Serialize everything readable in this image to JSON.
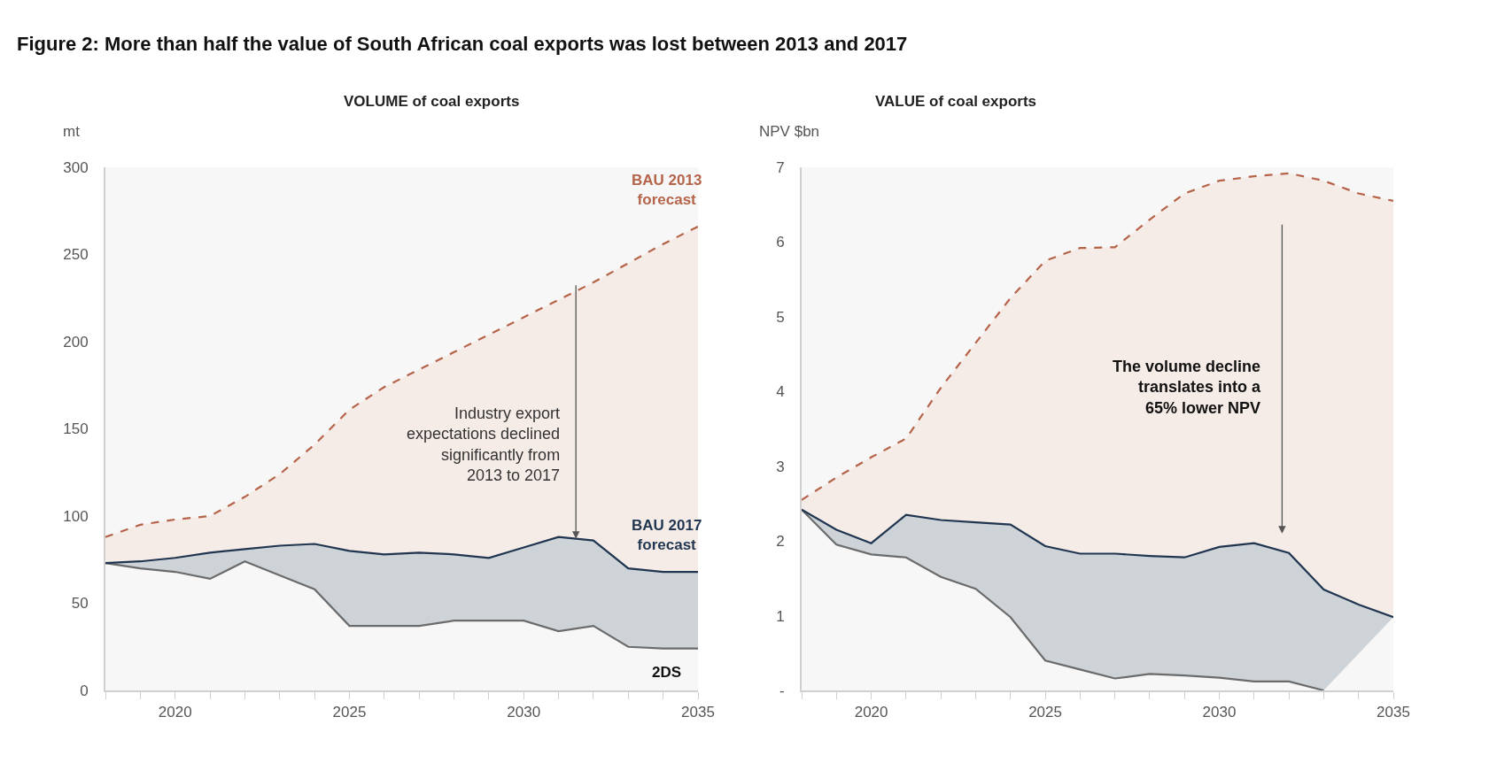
{
  "chart_data": [
    {
      "type": "area",
      "title": "Figure 2: More than half the value of South African coal exports was lost between 2013 and 2017",
      "subtitle": "VOLUME of coal exports",
      "ylabel": "mt",
      "x": [
        2018,
        2019,
        2020,
        2021,
        2022,
        2023,
        2024,
        2025,
        2026,
        2027,
        2028,
        2029,
        2030,
        2031,
        2032,
        2033,
        2034,
        2035
      ],
      "series": [
        {
          "name": "2DS",
          "type": "line",
          "color": "#6b6b6b",
          "values": [
            73,
            70,
            68,
            64,
            74,
            66,
            58,
            37,
            37,
            37,
            40,
            40,
            40,
            34,
            37,
            25,
            24,
            24
          ]
        },
        {
          "name": "BAU 2017 forecast",
          "color": "#1f3550",
          "values": [
            73,
            74,
            76,
            79,
            81,
            83,
            84,
            80,
            78,
            79,
            78,
            76,
            82,
            88,
            86,
            70,
            68,
            68
          ]
        },
        {
          "name": "BAU 2013 forecast",
          "color": "#b5644a",
          "line_style": "dashed",
          "values": [
            88,
            95,
            98,
            100,
            111,
            124,
            141,
            161,
            174,
            184,
            194,
            204,
            214,
            224,
            234,
            245,
            256,
            266
          ]
        }
      ],
      "xlim": [
        2018,
        2035
      ],
      "xticks": [
        {
          "value": 2018,
          "label": null
        },
        {
          "value": 2019,
          "label": null
        },
        2020,
        {
          "value": 2021,
          "label": null
        },
        {
          "value": 2022,
          "label": null
        },
        {
          "value": 2023,
          "label": null
        },
        {
          "value": 2024,
          "label": null
        },
        2025,
        {
          "value": 2026,
          "label": null
        },
        {
          "value": 2027,
          "label": null
        },
        {
          "value": 2028,
          "label": null
        },
        {
          "value": 2029,
          "label": null
        },
        2030,
        {
          "value": 2031,
          "label": null
        },
        {
          "value": 2032,
          "label": null
        },
        {
          "value": 2033,
          "label": null
        },
        {
          "value": 2034,
          "label": null
        },
        2035
      ],
      "ylim": [
        0,
        300
      ],
      "yticks": [
        0,
        50,
        100,
        150,
        200,
        250,
        300
      ],
      "annotations": [
        "Industry export\nexpectations declined\nsignificantly from\n2013 to 2017"
      ]
    },
    {
      "type": "area",
      "title": "VALUE of coal exports",
      "ylabel": "NPV $bn",
      "x": [
        2018,
        2019,
        2020,
        2021,
        2022,
        2023,
        2024,
        2025,
        2026,
        2027,
        2028,
        2029,
        2030,
        2031,
        2032,
        2033,
        2034,
        2035
      ],
      "series": [
        {
          "type": "line",
          "color": "#6b6b6b",
          "values": [
            2.42,
            1.95,
            1.82,
            1.78,
            1.52,
            1.36,
            0.98,
            0.4,
            0.28,
            0.16,
            0.22,
            0.2,
            0.17,
            0.12,
            0.12,
            0,
            null,
            null
          ]
        },
        {
          "color": "#1f3550",
          "values": [
            2.42,
            2.15,
            1.97,
            2.35,
            2.28,
            2.25,
            2.22,
            1.93,
            1.83,
            1.83,
            1.8,
            1.78,
            1.92,
            1.97,
            1.84,
            1.35,
            1.15,
            0.98
          ]
        },
        {
          "color": "#b5644a",
          "line_style": "dashed",
          "values": [
            2.55,
            2.85,
            3.12,
            3.37,
            4.05,
            4.65,
            5.25,
            5.75,
            5.92,
            5.93,
            6.3,
            6.65,
            6.82,
            6.88,
            6.92,
            6.82,
            6.65,
            6.55
          ]
        }
      ],
      "xlim": [
        2018,
        2035
      ],
      "xticks": [
        {
          "value": 2018,
          "label": null
        },
        {
          "value": 2019,
          "label": null
        },
        2020,
        {
          "value": 2021,
          "label": null
        },
        {
          "value": 2022,
          "label": null
        },
        {
          "value": 2023,
          "label": null
        },
        {
          "value": 2024,
          "label": null
        },
        2025,
        {
          "value": 2026,
          "label": null
        },
        {
          "value": 2027,
          "label": null
        },
        {
          "value": 2028,
          "label": null
        },
        {
          "value": 2029,
          "label": null
        },
        2030,
        {
          "value": 2031,
          "label": null
        },
        {
          "value": 2032,
          "label": null
        },
        {
          "value": 2033,
          "label": null
        },
        {
          "value": 2034,
          "label": null
        },
        2035
      ],
      "ylim": [
        0,
        7
      ],
      "yticks": [
        {
          "value": 0,
          "label": "-"
        },
        1,
        2,
        3,
        4,
        5,
        6,
        7
      ],
      "annotations": [
        "The volume decline\ntranslates into a\n65% lower NPV"
      ]
    }
  ]
}
